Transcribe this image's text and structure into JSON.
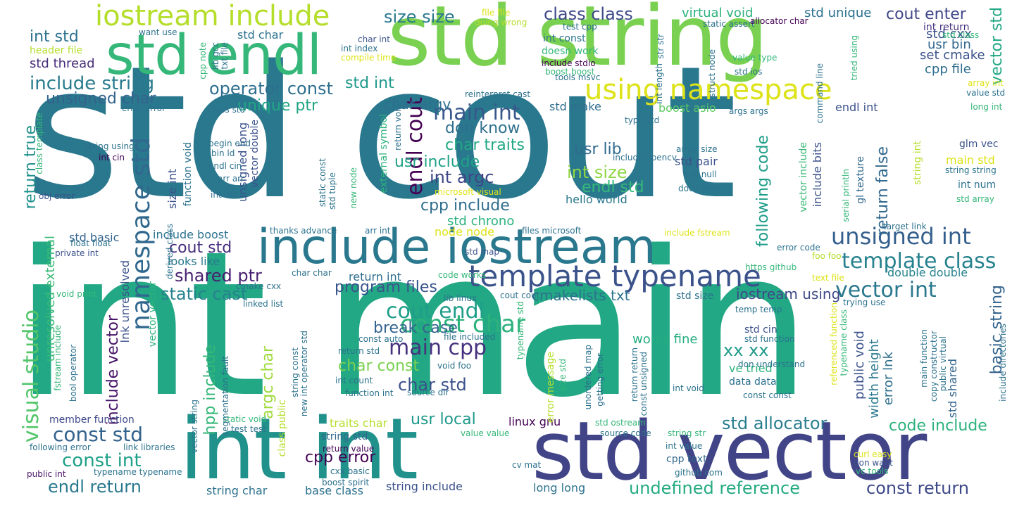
{
  "words": [
    {
      "text": "std cout",
      "color": "#2a788e"
    },
    {
      "text": "int main",
      "color": "#22a884"
    },
    {
      "text": "std string",
      "color": "#7ad151"
    },
    {
      "text": "int int",
      "color": "#21918c"
    },
    {
      "text": "std vector",
      "color": "#414487"
    },
    {
      "text": "std endl",
      "color": "#35b779"
    },
    {
      "text": "include iostream",
      "color": "#2a788e"
    },
    {
      "text": "using namespace",
      "color": "#dde318"
    },
    {
      "text": "template typename",
      "color": "#3b528b"
    },
    {
      "text": "iostream include",
      "color": "#b5de2b"
    },
    {
      "text": "unsigned int",
      "color": "#355f8d"
    },
    {
      "text": "namespace std",
      "color": "#31688e"
    },
    {
      "text": "visual studio",
      "color": "#52c569"
    },
    {
      "text": "main cpp",
      "color": "#46327e"
    },
    {
      "text": "const char",
      "color": "#2db27d"
    },
    {
      "text": "cout endl",
      "color": "#1f9e89"
    },
    {
      "text": "template class",
      "color": "#26828e"
    },
    {
      "text": "vector int",
      "color": "#2a788e"
    },
    {
      "text": "std allocator",
      "color": "#287d8e"
    },
    {
      "text": "undefined reference",
      "color": "#25ab82"
    },
    {
      "text": "const return",
      "color": "#3e4989"
    },
    {
      "text": "endl cout",
      "color": "#440154"
    },
    {
      "text": "main int",
      "color": "#38588c"
    },
    {
      "text": "const std",
      "color": "#33638d"
    },
    {
      "text": "int std",
      "color": "#2c728e"
    },
    {
      "text": "include string",
      "color": "#297b8e"
    },
    {
      "text": "size size",
      "color": "#2a788e"
    },
    {
      "text": "class class",
      "color": "#3e4989"
    },
    {
      "text": "cout enter",
      "color": "#404688"
    },
    {
      "text": "operator const",
      "color": "#2e6e8e"
    },
    {
      "text": "unique ptr",
      "color": "#21a585"
    },
    {
      "text": "std int",
      "color": "#1f988b"
    },
    {
      "text": "char argv",
      "color": "#2d708e"
    },
    {
      "text": "int argc",
      "color": "#3f4788"
    },
    {
      "text": "int size",
      "color": "#8fd744"
    },
    {
      "text": "don know",
      "color": "#2d708e"
    },
    {
      "text": "char traits",
      "color": "#22a884"
    },
    {
      "text": "usr include",
      "color": "#1fa187"
    },
    {
      "text": "cpp include",
      "color": "#2e6e8e"
    },
    {
      "text": "usr lib",
      "color": "#306a8e"
    },
    {
      "text": "endl std",
      "color": "#35b779"
    },
    {
      "text": "shared ptr",
      "color": "#481f70"
    },
    {
      "text": "cout std",
      "color": "#472d7b"
    },
    {
      "text": "program files",
      "color": "#39558c"
    },
    {
      "text": "static cast",
      "color": "#26828e"
    },
    {
      "text": "break case",
      "color": "#33638d"
    },
    {
      "text": "iostream using",
      "color": "#3e4989"
    },
    {
      "text": "cmakelists txt",
      "color": "#2c728e"
    },
    {
      "text": "char const",
      "color": "#7ad151"
    },
    {
      "text": "char std",
      "color": "#3b528b"
    },
    {
      "text": "xx xx",
      "color": "#1f9a8a"
    },
    {
      "text": "cpp error",
      "color": "#440154"
    },
    {
      "text": "usr local",
      "color": "#1f988b"
    },
    {
      "text": "const int",
      "color": "#1fa188"
    },
    {
      "text": "endl return",
      "color": "#2a788e"
    },
    {
      "text": "code include",
      "color": "#2db27d"
    },
    {
      "text": "basic string",
      "color": "#33638d"
    },
    {
      "text": "vector std",
      "color": "#22a884"
    },
    {
      "text": "unsigned char",
      "color": "#33638d"
    },
    {
      "text": "std thread",
      "color": "#472d7b"
    },
    {
      "text": "return false",
      "color": "#31688e"
    },
    {
      "text": "following code",
      "color": "#1f9e89"
    },
    {
      "text": "include vector",
      "color": "#481467"
    },
    {
      "text": "unresolved external",
      "color": "#3aba76"
    },
    {
      "text": "return true",
      "color": "#21918c"
    },
    {
      "text": "argc char",
      "color": "#9fda3a"
    },
    {
      "text": "hpp include",
      "color": "#35b779"
    },
    {
      "text": "std unique",
      "color": "#2c728e"
    },
    {
      "text": "virtual void",
      "color": "#2db27d"
    },
    {
      "text": "usr bin",
      "color": "#31688e"
    },
    {
      "text": "set cmake",
      "color": "#3b528b"
    },
    {
      "text": "cpp file",
      "color": "#2e6e8e"
    },
    {
      "text": "std cxx",
      "color": "#3b528b"
    },
    {
      "text": "int return",
      "color": "#46327e"
    },
    {
      "text": "std make",
      "color": "#2e6e8e"
    },
    {
      "text": "boost asio",
      "color": "#5ec962"
    },
    {
      "text": "endl int",
      "color": "#3b528b"
    },
    {
      "text": "std chrono",
      "color": "#2db27d"
    },
    {
      "text": "hello world",
      "color": "#2a788e"
    },
    {
      "text": "node node",
      "color": "#dde318"
    },
    {
      "text": "include boost",
      "color": "#2c728e"
    },
    {
      "text": "std basic",
      "color": "#33638d"
    },
    {
      "text": "looks like",
      "color": "#2a788e"
    },
    {
      "text": "return int",
      "color": "#2e6e8e"
    },
    {
      "text": "double double",
      "color": "#26828e"
    },
    {
      "text": "works fine",
      "color": "#26ad81"
    },
    {
      "text": "public void",
      "color": "#3b528b"
    },
    {
      "text": "width height",
      "color": "#2a788e"
    },
    {
      "text": "error lnk",
      "color": "#2e6e8e"
    },
    {
      "text": "std shared",
      "color": "#33638d"
    },
    {
      "text": "ve tried",
      "color": "#2db27d"
    },
    {
      "text": "data data",
      "color": "#2c728e"
    },
    {
      "text": "traits char",
      "color": "#b5de2b"
    },
    {
      "text": "linux gnu",
      "color": "#440154"
    },
    {
      "text": "string std",
      "color": "#31688e"
    },
    {
      "text": "long long",
      "color": "#2c728e"
    },
    {
      "text": "string include",
      "color": "#3b528b"
    },
    {
      "text": "base class",
      "color": "#2c728e"
    },
    {
      "text": "string char",
      "color": "#2c728e"
    },
    {
      "text": "member function",
      "color": "#3e4989"
    },
    {
      "text": "cpp text",
      "color": "#31688e"
    },
    {
      "text": "std size",
      "color": "#2c728e"
    },
    {
      "text": "std cin",
      "color": "#3b528b"
    },
    {
      "text": "std pair",
      "color": "#3b528b"
    },
    {
      "text": "glm vec",
      "color": "#3b528b"
    },
    {
      "text": "main std",
      "color": "#dde318"
    },
    {
      "text": "int num",
      "color": "#2c728e"
    },
    {
      "text": "string int",
      "color": "#b5de2b"
    },
    {
      "text": "gl texture",
      "color": "#31688e"
    },
    {
      "text": "include bits",
      "color": "#3b528b"
    },
    {
      "text": "vector include",
      "color": "#3aba76"
    },
    {
      "text": "external symbol",
      "color": "#2db27d"
    },
    {
      "text": "unsigned long",
      "color": "#3b528b"
    },
    {
      "text": "vector double",
      "color": "#3b528b"
    },
    {
      "text": "size int",
      "color": "#3b528b"
    },
    {
      "text": "function void",
      "color": "#2c728e"
    },
    {
      "text": "lnk unresolved",
      "color": "#3b528b"
    },
    {
      "text": "vector vector",
      "color": "#2db27d"
    },
    {
      "text": "class public",
      "color": "#b5de2b"
    },
    {
      "text": "doesn work",
      "color": "#35b779"
    },
    {
      "text": "int const",
      "color": "#2c728e"
    },
    {
      "text": "header file",
      "color": "#b5de2b"
    },
    {
      "text": "std char",
      "color": "#2c728e"
    },
    {
      "text": "test cpp",
      "color": "#2c728e"
    },
    {
      "text": "error message",
      "color": "#b5de2b"
    },
    {
      "text": "curl easy",
      "color": "#dde318"
    },
    {
      "text": "don want",
      "color": "#3b528b"
    },
    {
      "text": "vc tools",
      "color": "#35b779"
    },
    {
      "text": "cv mat",
      "color": "#2c728e"
    },
    {
      "text": "github com",
      "color": "#2c728e"
    },
    {
      "text": "int value",
      "color": "#2c728e"
    },
    {
      "text": "string str",
      "color": "#35b779"
    },
    {
      "text": "source code",
      "color": "#2c728e"
    },
    {
      "text": "std ostream",
      "color": "#35b779"
    },
    {
      "text": "value value",
      "color": "#35b779"
    },
    {
      "text": "boost spirit",
      "color": "#2c728e"
    },
    {
      "text": "cxx basic",
      "color": "#2c728e"
    },
    {
      "text": "return value",
      "color": "#440154"
    },
    {
      "text": "link libraries",
      "color": "#2c728e"
    },
    {
      "text": "test test",
      "color": "#2c728e"
    },
    {
      "text": "static void",
      "color": "#35b779"
    },
    {
      "text": "following error",
      "color": "#2c728e"
    },
    {
      "text": "public int",
      "color": "#481467"
    },
    {
      "text": "typename typename",
      "color": "#2c728e"
    },
    {
      "text": "void print",
      "color": "#35b779"
    },
    {
      "text": "bool operator",
      "color": "#2c728e"
    },
    {
      "text": "private int",
      "color": "#3b528b"
    },
    {
      "text": "float float",
      "color": "#2c728e"
    },
    {
      "text": "obj error",
      "color": "#3b528b"
    },
    {
      "text": "int arr",
      "color": "#2c728e"
    },
    {
      "text": "int cin",
      "color": "#440154"
    },
    {
      "text": "string using",
      "color": "#2c728e"
    },
    {
      "text": "error error",
      "color": "#2c728e"
    },
    {
      "text": "class std",
      "color": "#2c728e"
    },
    {
      "text": "want use",
      "color": "#2c728e"
    },
    {
      "text": "file file",
      "color": "#dde318"
    },
    {
      "text": "doing wrong",
      "color": "#b5de2b"
    },
    {
      "text": "char int",
      "color": "#3b528b"
    },
    {
      "text": "int index",
      "color": "#2c728e"
    },
    {
      "text": "compile time",
      "color": "#dde318"
    },
    {
      "text": "static assert",
      "color": "#2c728e"
    },
    {
      "text": "allocator char",
      "color": "#440154"
    },
    {
      "text": "include stdio",
      "color": "#440154"
    },
    {
      "text": "boost boost",
      "color": "#35b779"
    },
    {
      "text": "tools msvc",
      "color": "#2c728e"
    },
    {
      "text": "reinterpret cast",
      "color": "#2c728e"
    },
    {
      "text": "type std",
      "color": "#2c728e"
    },
    {
      "text": "args args",
      "color": "#2c728e"
    },
    {
      "text": "value type",
      "color": "#35b779"
    },
    {
      "text": "std ios",
      "color": "#2c728e"
    },
    {
      "text": "std class",
      "color": "#35b779"
    },
    {
      "text": "array int",
      "color": "#dde318"
    },
    {
      "text": "value std",
      "color": "#2c728e"
    },
    {
      "text": "long int",
      "color": "#35b779"
    },
    {
      "text": "array size",
      "color": "#2c728e"
    },
    {
      "text": "null null",
      "color": "#2c728e"
    },
    {
      "text": "does work",
      "color": "#2c728e"
    },
    {
      "text": "string string",
      "color": "#2c728e"
    },
    {
      "text": "std array",
      "color": "#35b779"
    },
    {
      "text": "target link",
      "color": "#2c728e"
    },
    {
      "text": "error code",
      "color": "#2c728e"
    },
    {
      "text": "foo foo",
      "color": "#b5de2b"
    },
    {
      "text": "https github",
      "color": "#35b779"
    },
    {
      "text": "text file",
      "color": "#dde318"
    },
    {
      "text": "trying use",
      "color": "#2c728e"
    },
    {
      "text": "temp temp",
      "color": "#2c728e"
    },
    {
      "text": "std function",
      "color": "#2c728e"
    },
    {
      "text": "don understand",
      "color": "#2c728e"
    },
    {
      "text": "const const",
      "color": "#2c728e"
    },
    {
      "text": "int void",
      "color": "#2c728e"
    },
    {
      "text": "begin end",
      "color": "#2c728e"
    },
    {
      "text": "bin ld",
      "color": "#2c728e"
    },
    {
      "text": "endl cin",
      "color": "#2c728e"
    },
    {
      "text": "arr arr",
      "color": "#2c728e"
    },
    {
      "text": "int data",
      "color": "#2c728e"
    },
    {
      "text": "include opencv",
      "color": "#2c728e"
    },
    {
      "text": "microsoft visual",
      "color": "#dde318"
    },
    {
      "text": "thanks advance",
      "color": "#2c728e"
    },
    {
      "text": "arr int",
      "color": "#2c728e"
    },
    {
      "text": "files microsoft",
      "color": "#2c728e"
    },
    {
      "text": "include fstream",
      "color": "#dde318"
    },
    {
      "text": "std map",
      "color": "#3b528b"
    },
    {
      "text": "char char",
      "color": "#2c728e"
    },
    {
      "text": "code works",
      "color": "#35b779"
    },
    {
      "text": "cmake cxx",
      "color": "#2c728e"
    },
    {
      "text": "lib linux",
      "color": "#2c728e"
    },
    {
      "text": "cout cout",
      "color": "#2c728e"
    },
    {
      "text": "linked list",
      "color": "#2c728e"
    },
    {
      "text": "const auto",
      "color": "#2c728e"
    },
    {
      "text": "file included",
      "color": "#2c728e"
    },
    {
      "text": "void foo",
      "color": "#2c728e"
    },
    {
      "text": "return std",
      "color": "#2c728e"
    },
    {
      "text": "int count",
      "color": "#2c728e"
    },
    {
      "text": "function int",
      "color": "#2c728e"
    },
    {
      "text": "source dir",
      "color": "#2c728e"
    },
    {
      "text": "command line",
      "color": "#2c728e"
    },
    {
      "text": "str str",
      "color": "#2c728e"
    },
    {
      "text": "struct node",
      "color": "#2c728e"
    },
    {
      "text": "int length",
      "color": "#2c728e"
    },
    {
      "text": "static const",
      "color": "#2c728e"
    },
    {
      "text": "std tuple",
      "color": "#2c728e"
    },
    {
      "text": "new node",
      "color": "#35b779"
    },
    {
      "text": "return void",
      "color": "#2c728e"
    },
    {
      "text": "serial println",
      "color": "#35b779"
    },
    {
      "text": "tried using",
      "color": "#35b779"
    },
    {
      "text": "lib gcc",
      "color": "#2c728e"
    },
    {
      "text": "txt file",
      "color": "#2c728e"
    },
    {
      "text": "cpp note",
      "color": "#35b779"
    },
    {
      "text": "derived class",
      "color": "#2c728e"
    },
    {
      "text": "class template",
      "color": "#35b779"
    },
    {
      "text": "fstream include",
      "color": "#35b779"
    },
    {
      "text": "vector string",
      "color": "#2c728e"
    },
    {
      "text": "segmentation fault",
      "color": "#2c728e"
    },
    {
      "text": "string const",
      "color": "#2c728e"
    },
    {
      "text": "new int operator std",
      "color": "#2c728e"
    },
    {
      "text": "size std",
      "color": "#35b779"
    },
    {
      "text": "unordered map",
      "color": "#2c728e"
    },
    {
      "text": "getting error",
      "color": "#2c728e"
    },
    {
      "text": "return return",
      "color": "#2c728e"
    },
    {
      "text": "const unsigned",
      "color": "#2c728e"
    },
    {
      "text": "referenced function",
      "color": "#dde318"
    },
    {
      "text": "typename class",
      "color": "#35b779"
    },
    {
      "text": "copy constructor",
      "color": "#2c728e"
    },
    {
      "text": "public virtual",
      "color": "#2c728e"
    },
    {
      "text": "main function",
      "color": "#2c728e"
    },
    {
      "text": "include directories",
      "color": "#2c728e"
    },
    {
      "text": "typename std",
      "color": "#35b779"
    }
  ]
}
